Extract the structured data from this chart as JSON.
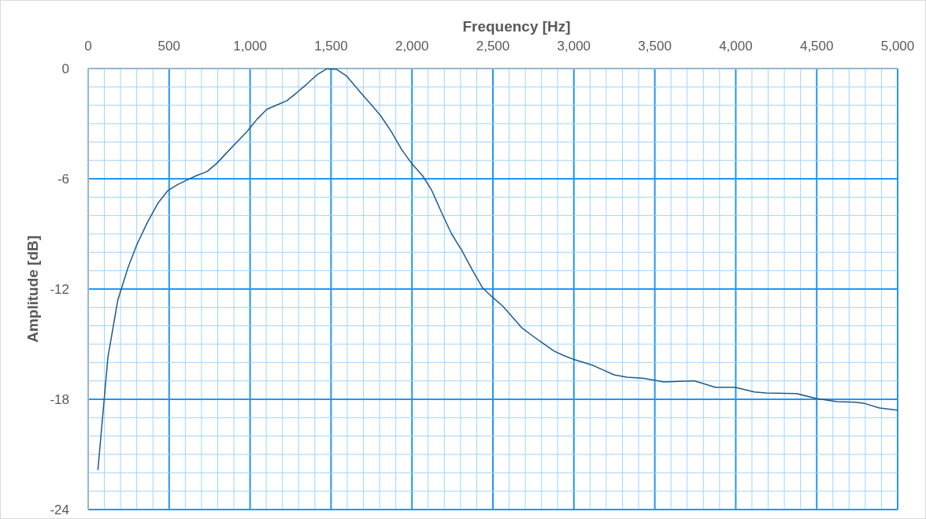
{
  "chart_data": {
    "type": "line",
    "xlabel": "Frequency [Hz]",
    "ylabel": "Amplitude [dB]",
    "xlim": [
      0,
      5000
    ],
    "xticks": [
      {
        "value": 0,
        "label": "0"
      },
      {
        "value": 100,
        "label": null
      },
      {
        "value": 200,
        "label": null
      },
      {
        "value": 300,
        "label": null
      },
      {
        "value": 400,
        "label": null
      },
      {
        "value": 500,
        "label": "500"
      },
      {
        "value": 600,
        "label": null
      },
      {
        "value": 700,
        "label": null
      },
      {
        "value": 800,
        "label": null
      },
      {
        "value": 900,
        "label": null
      },
      {
        "value": 1000,
        "label": "1,000"
      },
      {
        "value": 1100,
        "label": null
      },
      {
        "value": 1200,
        "label": null
      },
      {
        "value": 1300,
        "label": null
      },
      {
        "value": 1400,
        "label": null
      },
      {
        "value": 1500,
        "label": "1,500"
      },
      {
        "value": 1600,
        "label": null
      },
      {
        "value": 1700,
        "label": null
      },
      {
        "value": 1800,
        "label": null
      },
      {
        "value": 1900,
        "label": null
      },
      {
        "value": 2000,
        "label": "2,000"
      },
      {
        "value": 2100,
        "label": null
      },
      {
        "value": 2200,
        "label": null
      },
      {
        "value": 2300,
        "label": null
      },
      {
        "value": 2400,
        "label": null
      },
      {
        "value": 2500,
        "label": "2,500"
      },
      {
        "value": 2600,
        "label": null
      },
      {
        "value": 2700,
        "label": null
      },
      {
        "value": 2800,
        "label": null
      },
      {
        "value": 2900,
        "label": null
      },
      {
        "value": 3000,
        "label": "3,000"
      },
      {
        "value": 3100,
        "label": null
      },
      {
        "value": 3200,
        "label": null
      },
      {
        "value": 3300,
        "label": null
      },
      {
        "value": 3400,
        "label": null
      },
      {
        "value": 3500,
        "label": "3,500"
      },
      {
        "value": 3600,
        "label": null
      },
      {
        "value": 3700,
        "label": null
      },
      {
        "value": 3800,
        "label": null
      },
      {
        "value": 3900,
        "label": null
      },
      {
        "value": 4000,
        "label": "4,000"
      },
      {
        "value": 4100,
        "label": null
      },
      {
        "value": 4200,
        "label": null
      },
      {
        "value": 4300,
        "label": null
      },
      {
        "value": 4400,
        "label": null
      },
      {
        "value": 4500,
        "label": "4,500"
      },
      {
        "value": 4600,
        "label": null
      },
      {
        "value": 4700,
        "label": null
      },
      {
        "value": 4800,
        "label": null
      },
      {
        "value": 4900,
        "label": null
      },
      {
        "value": 5000,
        "label": "5,000"
      }
    ],
    "ylim": [
      -24,
      0
    ],
    "yticks": [
      -24,
      {
        "value": -23,
        "label": null
      },
      {
        "value": -22,
        "label": null
      },
      {
        "value": -21,
        "label": null
      },
      {
        "value": -20,
        "label": null
      },
      {
        "value": -19,
        "label": null
      },
      -18,
      {
        "value": -17,
        "label": null
      },
      {
        "value": -16,
        "label": null
      },
      {
        "value": -15,
        "label": null
      },
      {
        "value": -14,
        "label": null
      },
      {
        "value": -13,
        "label": null
      },
      -12,
      {
        "value": -11,
        "label": null
      },
      {
        "value": -10,
        "label": null
      },
      {
        "value": -9,
        "label": null
      },
      {
        "value": -8,
        "label": null
      },
      {
        "value": -7,
        "label": null
      },
      -6,
      {
        "value": -5,
        "label": null
      },
      {
        "value": -4,
        "label": null
      },
      {
        "value": -3,
        "label": null
      },
      {
        "value": -2,
        "label": null
      },
      {
        "value": -1,
        "label": null
      },
      0
    ],
    "grid": true,
    "marker": "none",
    "line_style": "solid",
    "series": [
      {
        "color": "#1f5a8c",
        "x": [
          60,
          122,
          183,
          246,
          301,
          367,
          430,
          491,
          550,
          610,
          671,
          734,
          793,
          857,
          919,
          979,
          1043,
          1104,
          1166,
          1227,
          1288,
          1349,
          1413,
          1474,
          1533,
          1595,
          1693,
          1750,
          1806,
          1871,
          1936,
          2001,
          2066,
          2122,
          2187,
          2244,
          2309,
          2374,
          2438,
          2503,
          2560,
          2617,
          2681,
          2747,
          2811,
          2876,
          2941,
          3006,
          3119,
          3249,
          3330,
          3427,
          3557,
          3743,
          3873,
          3995,
          4116,
          4189,
          4376,
          4497,
          4627,
          4741,
          4797,
          4887,
          4997
        ],
        "values": [
          -21.85,
          -15.7,
          -12.6,
          -10.83,
          -9.58,
          -8.35,
          -7.34,
          -6.65,
          -6.33,
          -6.07,
          -5.82,
          -5.61,
          -5.17,
          -4.57,
          -4.0,
          -3.45,
          -2.76,
          -2.22,
          -1.98,
          -1.75,
          -1.32,
          -0.86,
          -0.34,
          -0.02,
          -0.04,
          -0.4,
          -1.41,
          -1.98,
          -2.56,
          -3.41,
          -4.41,
          -5.2,
          -5.84,
          -6.63,
          -7.92,
          -8.99,
          -9.92,
          -10.99,
          -11.96,
          -12.49,
          -12.92,
          -13.49,
          -14.13,
          -14.56,
          -14.96,
          -15.37,
          -15.63,
          -15.85,
          -16.16,
          -16.67,
          -16.8,
          -16.85,
          -17.06,
          -16.99,
          -17.35,
          -17.35,
          -17.6,
          -17.66,
          -17.69,
          -17.96,
          -18.13,
          -18.16,
          -18.23,
          -18.47,
          -18.59
        ]
      }
    ]
  }
}
